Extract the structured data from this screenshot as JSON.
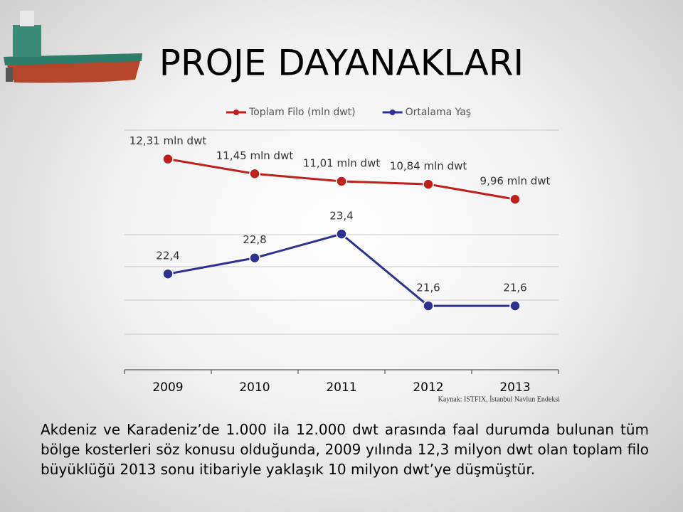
{
  "slide": {
    "title": "PROJE DAYANAKLARI",
    "source": "Kaynak: ISTFIX, İstanbul Navlun Endeksi",
    "body": "Akdeniz ve Karadeniz’de 1.000 ila 12.000 dwt arasında faal durumda bulunan tüm bölge kosterleri söz konusu olduğunda, 2009 yılında 12,3 milyon dwt olan toplam filo büyüklüğü 2013 sonu itibariyle yaklaşık 10 milyon dwt’ye düşmüştür."
  },
  "chart_data": {
    "type": "line",
    "legend": "top",
    "categories": [
      "2009",
      "2010",
      "2011",
      "2012",
      "2013"
    ],
    "ylim": [
      0,
      14
    ],
    "y2lim": [
      20,
      26
    ],
    "series": [
      {
        "name": "Toplam Filo (mln dwt)",
        "color": "#c0201c",
        "values": [
          12.31,
          11.45,
          11.01,
          10.84,
          9.96
        ],
        "value_labels": [
          "12,31 mln dwt",
          "11,45 mln dwt",
          "11,01 mln dwt",
          "10,84 mln dwt",
          "9,96 mln dwt"
        ]
      },
      {
        "name": "Ortalama Yaş",
        "color": "#2e3191",
        "axis": "y2",
        "values": [
          22.4,
          22.8,
          23.4,
          21.6,
          21.6
        ],
        "value_labels": [
          "22,4",
          "22,8",
          "23,4",
          "21,6",
          "21,6"
        ]
      }
    ]
  }
}
